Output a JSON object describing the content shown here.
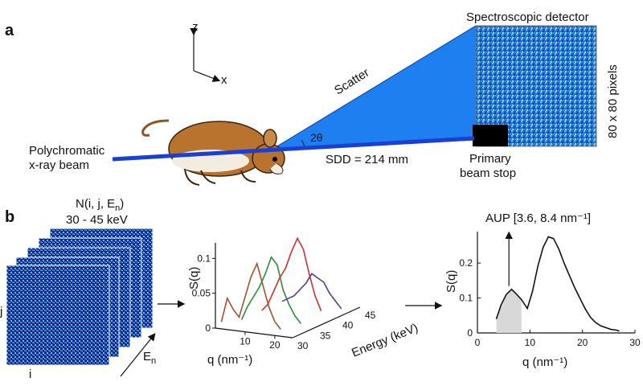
{
  "panel_a": {
    "label": "a",
    "axis_z": "z",
    "axis_x": "x",
    "beam_label_line1": "Polychromatic",
    "beam_label_line2": "x-ray beam",
    "scatter_label": "Scatter",
    "angle_label": "2θ",
    "sdd_label": "SDD = 214 mm",
    "detector_label": "Spectroscopic detector",
    "pixels_label": "80 x 80 pixels",
    "beamstop_line1": "Primary",
    "beamstop_line2": "beam stop",
    "colors": {
      "beam": "#1a3fd6",
      "scatter_cone": "#1e7ff0",
      "detector_bg": "#2a6fd0",
      "mouse": "#b8742f"
    }
  },
  "panel_b": {
    "label": "b",
    "stack_title_line1": "N(i, j, E",
    "stack_title_sub": "n",
    "stack_title_close": ")",
    "stack_range": "30 - 45 keV",
    "axis_i": "i",
    "axis_j": "j",
    "axis_en": "E",
    "axis_en_sub": "n"
  },
  "chart_data": [
    {
      "type": "line",
      "title": "",
      "ylabel": "S(q)",
      "xlabel": "q (nm⁻¹)",
      "zlabel": "Energy (keV)",
      "ylim": [
        0,
        0.12
      ],
      "yticks": [
        "0",
        "0.05",
        "0.1"
      ],
      "xticks": [
        "10",
        "20"
      ],
      "zticks": [
        "30",
        "35",
        "40",
        "45"
      ],
      "series": [
        {
          "energy_keV": 30,
          "color": "#a0522d",
          "x": [
            2,
            4,
            6,
            8,
            10,
            12,
            14,
            16,
            18,
            20,
            22
          ],
          "values": [
            0.01,
            0.045,
            0.03,
            0.02,
            0.05,
            0.08,
            0.1,
            0.07,
            0.04,
            0.02,
            0.01
          ]
        },
        {
          "energy_keV": 35,
          "color": "#2e8b3a",
          "x": [
            2,
            4,
            6,
            8,
            10,
            12,
            14,
            16,
            18,
            20,
            22
          ],
          "values": [
            0.0,
            0.02,
            0.035,
            0.05,
            0.07,
            0.095,
            0.085,
            0.05,
            0.03,
            0.015,
            0.005
          ]
        },
        {
          "energy_keV": 40,
          "color": "#d03030",
          "x": [
            2,
            4,
            6,
            8,
            10,
            12,
            14,
            16,
            18,
            20,
            22
          ],
          "values": [
            0.0,
            0.01,
            0.03,
            0.05,
            0.065,
            0.09,
            0.11,
            0.095,
            0.06,
            0.03,
            0.01
          ]
        },
        {
          "energy_keV": 45,
          "color": "#5a3a8a",
          "x": [
            2,
            4,
            6,
            8,
            10,
            12,
            14,
            16,
            18,
            20,
            22
          ],
          "values": [
            0.0,
            0.005,
            0.01,
            0.02,
            0.03,
            0.045,
            0.04,
            0.035,
            0.02,
            0.01,
            0.0
          ]
        }
      ]
    },
    {
      "type": "line",
      "title": "AUP [3.6, 8.4 nm⁻¹]",
      "ylabel": "S(q)",
      "xlabel": "q (nm⁻¹)",
      "xlim": [
        0,
        30
      ],
      "ylim": [
        0,
        0.29
      ],
      "xticks": [
        0,
        10,
        20,
        30
      ],
      "yticks": [
        0,
        0.1,
        0.2
      ],
      "aup_range": [
        3.6,
        8.4
      ],
      "series": [
        {
          "color": "#111111",
          "x": [
            3.6,
            4.5,
            5.5,
            6.5,
            7.5,
            8.4,
            9.5,
            10.5,
            11.5,
            12.5,
            13.5,
            14.5,
            15.5,
            16.5,
            17.5,
            18.5,
            19.5,
            20.5,
            21.5,
            22.5,
            23.5,
            24.5,
            25.5,
            26.5,
            27
          ],
          "values": [
            0.04,
            0.08,
            0.11,
            0.125,
            0.11,
            0.095,
            0.07,
            0.12,
            0.19,
            0.245,
            0.275,
            0.27,
            0.24,
            0.2,
            0.165,
            0.13,
            0.1,
            0.07,
            0.045,
            0.03,
            0.02,
            0.015,
            0.01,
            0.008,
            0.005
          ]
        }
      ]
    }
  ]
}
